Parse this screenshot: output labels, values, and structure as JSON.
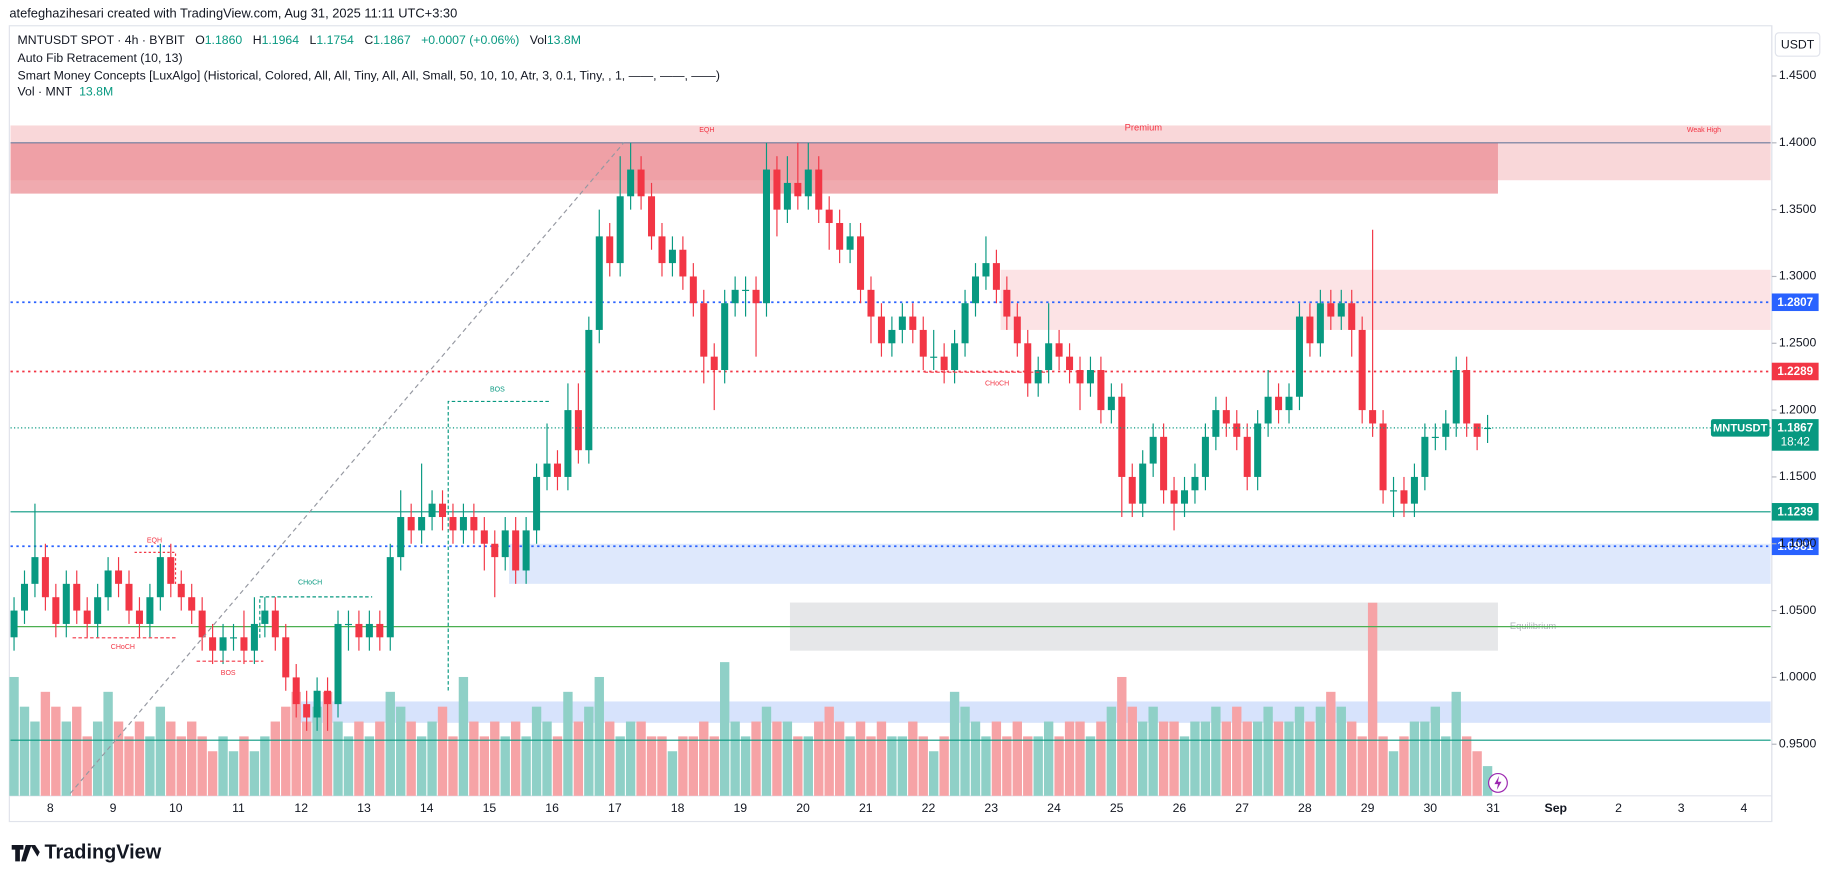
{
  "header": {
    "credit": "atefeghazihesari created with TradingView.com, Aug 31, 2025 11:11 UTC+3:30",
    "symbol": "MNTUSDT SPOT · 4h · BYBIT",
    "ohlc": [
      {
        "label": "O",
        "value": "1.1860"
      },
      {
        "label": "H",
        "value": "1.1964"
      },
      {
        "label": "L",
        "value": "1.1754"
      },
      {
        "label": "C",
        "value": "1.1867"
      }
    ],
    "change": "+0.0007 (+0.06%)",
    "vol_label": "Vol",
    "vol": "13.8M",
    "indicators": [
      "Auto Fib Retracement (10, 13)",
      "Smart Money Concepts [LuxAlgo] (Historical, Colored, All, All, Tiny, All, All, Small, 50, 10, 10, Atr, 3, 0.1, Tiny, , 1, ——, ——, ——)"
    ],
    "volume_legend": "Vol · MNT",
    "volume_value": "13.8M"
  },
  "currency": "USDT",
  "brand": "TradingView",
  "chart_data": {
    "type": "candlestick",
    "up_color": "#089981",
    "down_color": "#f23645",
    "volume_up_color": "#8fd0c7",
    "volume_down_color": "#f6a3a6",
    "ylim": [
      0.9114,
      1.4876
    ],
    "yticks": [
      {
        "value": 1.45,
        "label": "1.4500"
      },
      {
        "value": 1.4,
        "label": "1.4000"
      },
      {
        "value": 1.35,
        "label": "1.3500"
      },
      {
        "value": 1.3,
        "label": "1.3000"
      },
      {
        "value": 1.25,
        "label": "1.2500"
      },
      {
        "value": 1.2,
        "label": "1.2000"
      },
      {
        "value": 1.15,
        "label": "1.1500"
      },
      {
        "value": 1.1,
        "label": "1.1000"
      },
      {
        "value": 1.05,
        "label": "1.0500"
      },
      {
        "value": 1.0,
        "label": "1.0000"
      },
      {
        "value": 0.95,
        "label": "0.9500"
      }
    ],
    "grid": false,
    "categories": [
      "8",
      "9",
      "10",
      "11",
      "12",
      "13",
      "14",
      "15",
      "16",
      "17",
      "18",
      "19",
      "20",
      "21",
      "22",
      "23",
      "24",
      "25",
      "26",
      "27",
      "28",
      "29",
      "30",
      "31",
      "Sep",
      "2",
      "3",
      "4"
    ],
    "candles": [
      [
        1.03,
        1.06,
        1.02,
        1.05
      ],
      [
        1.05,
        1.08,
        1.04,
        1.07
      ],
      [
        1.07,
        1.13,
        1.06,
        1.09
      ],
      [
        1.09,
        1.1,
        1.05,
        1.06
      ],
      [
        1.06,
        1.07,
        1.03,
        1.04
      ],
      [
        1.04,
        1.08,
        1.03,
        1.07
      ],
      [
        1.07,
        1.08,
        1.04,
        1.05
      ],
      [
        1.05,
        1.06,
        1.03,
        1.04
      ],
      [
        1.04,
        1.07,
        1.03,
        1.06
      ],
      [
        1.06,
        1.09,
        1.05,
        1.08
      ],
      [
        1.08,
        1.09,
        1.06,
        1.07
      ],
      [
        1.07,
        1.08,
        1.04,
        1.05
      ],
      [
        1.05,
        1.06,
        1.03,
        1.04
      ],
      [
        1.04,
        1.07,
        1.03,
        1.06
      ],
      [
        1.06,
        1.1,
        1.05,
        1.09
      ],
      [
        1.09,
        1.1,
        1.06,
        1.07
      ],
      [
        1.07,
        1.08,
        1.05,
        1.06
      ],
      [
        1.06,
        1.07,
        1.04,
        1.05
      ],
      [
        1.05,
        1.06,
        1.02,
        1.03
      ],
      [
        1.03,
        1.04,
        1.01,
        1.02
      ],
      [
        1.02,
        1.04,
        1.01,
        1.03
      ],
      [
        1.03,
        1.04,
        1.02,
        1.03
      ],
      [
        1.03,
        1.05,
        1.01,
        1.02
      ],
      [
        1.02,
        1.06,
        1.01,
        1.04
      ],
      [
        1.04,
        1.06,
        1.03,
        1.05
      ],
      [
        1.05,
        1.06,
        1.02,
        1.03
      ],
      [
        1.03,
        1.04,
        0.99,
        1.0
      ],
      [
        1.0,
        1.01,
        0.97,
        0.98
      ],
      [
        0.98,
        0.99,
        0.96,
        0.97
      ],
      [
        0.97,
        1.0,
        0.96,
        0.99
      ],
      [
        0.99,
        1.0,
        0.96,
        0.98
      ],
      [
        0.98,
        1.05,
        0.97,
        1.04
      ],
      [
        1.04,
        1.05,
        1.02,
        1.04
      ],
      [
        1.04,
        1.05,
        1.02,
        1.03
      ],
      [
        1.03,
        1.05,
        1.02,
        1.04
      ],
      [
        1.04,
        1.05,
        1.02,
        1.03
      ],
      [
        1.03,
        1.1,
        1.02,
        1.09
      ],
      [
        1.09,
        1.14,
        1.08,
        1.12
      ],
      [
        1.12,
        1.13,
        1.1,
        1.11
      ],
      [
        1.11,
        1.16,
        1.1,
        1.12
      ],
      [
        1.12,
        1.14,
        1.11,
        1.13
      ],
      [
        1.13,
        1.14,
        1.11,
        1.12
      ],
      [
        1.12,
        1.13,
        1.1,
        1.11
      ],
      [
        1.11,
        1.13,
        1.1,
        1.12
      ],
      [
        1.12,
        1.13,
        1.1,
        1.11
      ],
      [
        1.11,
        1.12,
        1.08,
        1.1
      ],
      [
        1.1,
        1.11,
        1.06,
        1.09
      ],
      [
        1.09,
        1.12,
        1.08,
        1.11
      ],
      [
        1.11,
        1.12,
        1.07,
        1.08
      ],
      [
        1.08,
        1.12,
        1.07,
        1.11
      ],
      [
        1.11,
        1.16,
        1.1,
        1.15
      ],
      [
        1.15,
        1.19,
        1.14,
        1.16
      ],
      [
        1.16,
        1.17,
        1.14,
        1.15
      ],
      [
        1.15,
        1.22,
        1.14,
        1.2
      ],
      [
        1.2,
        1.22,
        1.16,
        1.17
      ],
      [
        1.17,
        1.27,
        1.16,
        1.26
      ],
      [
        1.26,
        1.35,
        1.25,
        1.33
      ],
      [
        1.33,
        1.34,
        1.3,
        1.31
      ],
      [
        1.31,
        1.39,
        1.3,
        1.36
      ],
      [
        1.36,
        1.4,
        1.35,
        1.38
      ],
      [
        1.38,
        1.39,
        1.35,
        1.36
      ],
      [
        1.36,
        1.37,
        1.32,
        1.33
      ],
      [
        1.33,
        1.34,
        1.3,
        1.31
      ],
      [
        1.31,
        1.33,
        1.3,
        1.32
      ],
      [
        1.32,
        1.33,
        1.29,
        1.3
      ],
      [
        1.3,
        1.31,
        1.27,
        1.28
      ],
      [
        1.28,
        1.29,
        1.22,
        1.24
      ],
      [
        1.24,
        1.25,
        1.2,
        1.23
      ],
      [
        1.23,
        1.29,
        1.22,
        1.28
      ],
      [
        1.28,
        1.3,
        1.27,
        1.29
      ],
      [
        1.29,
        1.3,
        1.27,
        1.29
      ],
      [
        1.29,
        1.3,
        1.24,
        1.28
      ],
      [
        1.28,
        1.4,
        1.27,
        1.38
      ],
      [
        1.38,
        1.39,
        1.33,
        1.35
      ],
      [
        1.35,
        1.39,
        1.34,
        1.37
      ],
      [
        1.37,
        1.4,
        1.35,
        1.36
      ],
      [
        1.36,
        1.4,
        1.35,
        1.38
      ],
      [
        1.38,
        1.39,
        1.34,
        1.35
      ],
      [
        1.35,
        1.36,
        1.32,
        1.34
      ],
      [
        1.34,
        1.35,
        1.31,
        1.32
      ],
      [
        1.32,
        1.34,
        1.31,
        1.33
      ],
      [
        1.33,
        1.34,
        1.28,
        1.29
      ],
      [
        1.29,
        1.3,
        1.25,
        1.27
      ],
      [
        1.27,
        1.28,
        1.24,
        1.25
      ],
      [
        1.25,
        1.27,
        1.24,
        1.26
      ],
      [
        1.26,
        1.28,
        1.25,
        1.27
      ],
      [
        1.27,
        1.28,
        1.25,
        1.26
      ],
      [
        1.26,
        1.27,
        1.23,
        1.24
      ],
      [
        1.24,
        1.26,
        1.23,
        1.24
      ],
      [
        1.24,
        1.25,
        1.22,
        1.23
      ],
      [
        1.23,
        1.26,
        1.22,
        1.25
      ],
      [
        1.25,
        1.29,
        1.24,
        1.28
      ],
      [
        1.28,
        1.31,
        1.27,
        1.3
      ],
      [
        1.3,
        1.33,
        1.29,
        1.31
      ],
      [
        1.31,
        1.32,
        1.28,
        1.29
      ],
      [
        1.29,
        1.3,
        1.26,
        1.27
      ],
      [
        1.27,
        1.28,
        1.24,
        1.25
      ],
      [
        1.25,
        1.26,
        1.21,
        1.22
      ],
      [
        1.22,
        1.24,
        1.21,
        1.23
      ],
      [
        1.23,
        1.28,
        1.22,
        1.25
      ],
      [
        1.25,
        1.26,
        1.23,
        1.24
      ],
      [
        1.24,
        1.25,
        1.22,
        1.23
      ],
      [
        1.23,
        1.24,
        1.2,
        1.22
      ],
      [
        1.22,
        1.24,
        1.21,
        1.23
      ],
      [
        1.23,
        1.24,
        1.19,
        1.2
      ],
      [
        1.2,
        1.22,
        1.19,
        1.21
      ],
      [
        1.21,
        1.22,
        1.12,
        1.15
      ],
      [
        1.15,
        1.16,
        1.12,
        1.13
      ],
      [
        1.13,
        1.17,
        1.12,
        1.16
      ],
      [
        1.16,
        1.19,
        1.15,
        1.18
      ],
      [
        1.18,
        1.19,
        1.13,
        1.14
      ],
      [
        1.14,
        1.15,
        1.11,
        1.13
      ],
      [
        1.13,
        1.15,
        1.12,
        1.14
      ],
      [
        1.14,
        1.16,
        1.13,
        1.15
      ],
      [
        1.15,
        1.19,
        1.14,
        1.18
      ],
      [
        1.18,
        1.21,
        1.17,
        1.2
      ],
      [
        1.2,
        1.21,
        1.18,
        1.19
      ],
      [
        1.19,
        1.2,
        1.17,
        1.18
      ],
      [
        1.18,
        1.19,
        1.14,
        1.15
      ],
      [
        1.15,
        1.2,
        1.14,
        1.19
      ],
      [
        1.19,
        1.23,
        1.18,
        1.21
      ],
      [
        1.21,
        1.22,
        1.19,
        1.2
      ],
      [
        1.2,
        1.22,
        1.19,
        1.21
      ],
      [
        1.21,
        1.28,
        1.2,
        1.27
      ],
      [
        1.27,
        1.28,
        1.24,
        1.25
      ],
      [
        1.25,
        1.29,
        1.24,
        1.28
      ],
      [
        1.28,
        1.29,
        1.26,
        1.27
      ],
      [
        1.27,
        1.29,
        1.26,
        1.28
      ],
      [
        1.28,
        1.29,
        1.24,
        1.26
      ],
      [
        1.26,
        1.27,
        1.19,
        1.2
      ],
      [
        1.2,
        1.335,
        1.18,
        1.19
      ],
      [
        1.19,
        1.2,
        1.13,
        1.14
      ],
      [
        1.14,
        1.15,
        1.12,
        1.14
      ],
      [
        1.14,
        1.15,
        1.12,
        1.13
      ],
      [
        1.13,
        1.16,
        1.12,
        1.15
      ],
      [
        1.15,
        1.19,
        1.14,
        1.18
      ],
      [
        1.18,
        1.19,
        1.17,
        1.18
      ],
      [
        1.18,
        1.2,
        1.17,
        1.19
      ],
      [
        1.19,
        1.24,
        1.18,
        1.23
      ],
      [
        1.23,
        1.24,
        1.18,
        1.19
      ],
      [
        1.19,
        1.19,
        1.17,
        1.18
      ],
      [
        1.186,
        1.1964,
        1.1754,
        1.1867
      ]
    ],
    "volumes": [
      8,
      6,
      5,
      7,
      6,
      5,
      6,
      4,
      5,
      7,
      5,
      4,
      5,
      4,
      6,
      5,
      4,
      5,
      4,
      3,
      4,
      3,
      4,
      3,
      4,
      5,
      6,
      7,
      5,
      6,
      7,
      5,
      4,
      5,
      4,
      5,
      7,
      6,
      5,
      4,
      5,
      6,
      4,
      8,
      5,
      4,
      5,
      4,
      5,
      4,
      6,
      5,
      4,
      7,
      5,
      6,
      8,
      5,
      4,
      5,
      5,
      4,
      4,
      3,
      4,
      4,
      5,
      4,
      9,
      5,
      4,
      5,
      6,
      5,
      5,
      4,
      4,
      5,
      6,
      5,
      4,
      5,
      4,
      5,
      4,
      4,
      5,
      4,
      3,
      4,
      7,
      6,
      5,
      4,
      5,
      4,
      5,
      4,
      4,
      5,
      4,
      5,
      5,
      4,
      5,
      6,
      8,
      6,
      5,
      6,
      5,
      5,
      4,
      5,
      5,
      6,
      5,
      6,
      5,
      5,
      6,
      5,
      5,
      6,
      5,
      6,
      7,
      6,
      5,
      4,
      13,
      4,
      3,
      4,
      5,
      5,
      6,
      4,
      7,
      4,
      3,
      2
    ],
    "zones": [
      {
        "top": 1.413,
        "bottom": 1.372,
        "color": "#f7c9cc",
        "label": "Premium"
      },
      {
        "top": 1.4,
        "bottom": 1.362,
        "color": "#eb8e94"
      },
      {
        "top": 1.305,
        "bottom": 1.26,
        "color": "#fbdadc"
      },
      {
        "top": 1.1,
        "bottom": 1.07,
        "color": "#d3e0fb"
      },
      {
        "top": 1.056,
        "bottom": 1.02,
        "color": "#dedfe2",
        "label": "Equilibrium"
      },
      {
        "top": 0.982,
        "bottom": 0.966,
        "color": "#c9dafb"
      }
    ],
    "levels": [
      {
        "value": 1.4,
        "color": "#6c7a9c",
        "style": "solid"
      },
      {
        "value": 1.2807,
        "color": "#2962ff",
        "style": "dotted",
        "label_color": "#2962ff"
      },
      {
        "value": 1.2289,
        "color": "#f23645",
        "style": "dotted",
        "label_color": "#f23645"
      },
      {
        "value": 1.1239,
        "color": "#089981",
        "style": "solid",
        "label_color": "#089981"
      },
      {
        "value": 1.0981,
        "color": "#2962ff",
        "style": "dotted",
        "label_color": "#2962ff"
      },
      {
        "value": 1.038,
        "color": "#4caf50",
        "style": "solid"
      },
      {
        "value": 0.953,
        "color": "#089981",
        "style": "solid"
      }
    ],
    "annotations": [
      "EQH",
      "Weak High",
      "BOS",
      "CHoCH",
      "CHoCH",
      "EQH",
      "CHoCH",
      "BOS"
    ],
    "last": {
      "symbol": "MNTUSDT",
      "value": 1.1867,
      "countdown": "18:42",
      "color": "#089981"
    }
  }
}
